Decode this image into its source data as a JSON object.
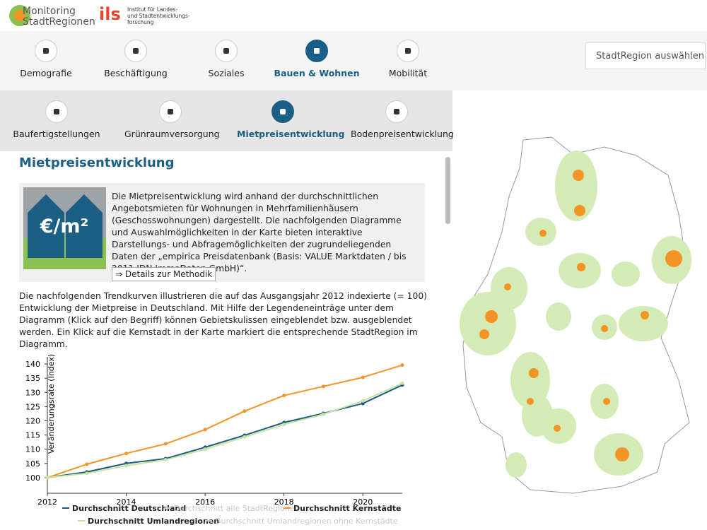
{
  "header": {
    "logo_main": [
      "Monitoring",
      "StadtRegionen"
    ],
    "logo_ils": "ils",
    "ils_lines": [
      "Institut für Landes-",
      "und Stadtentwicklungs-",
      "forschung"
    ]
  },
  "nav": {
    "active": 3,
    "items": [
      "Demografie",
      "Beschäftigung",
      "Soziales",
      "Bauen & Wohnen",
      "Mobilität"
    ]
  },
  "subnav": {
    "active": 2,
    "items": [
      "Baufertigstellungen",
      "Grünraumversorgung",
      "Mietpreisentwicklung",
      "Bodenpreisentwicklung"
    ]
  },
  "search": {
    "placeholder": "StadtRegion auswählen ..."
  },
  "section": {
    "title": "Mietpreisentwicklung",
    "icon_label": "€/m²",
    "intro": "Die Mietpreisentwicklung wird anhand der durchschnittlichen Angebotsmieten für Wohnungen in Mehrfamilienhäusern (Geschosswohnungen) dargestellt. Die nachfolgenden Diagramme und Auswahlmöglichkeiten in der Karte bieten interaktive Darstellungs- und Abfragemöglichkeiten der zugrundeliegenden Daten der „empirica Preisdatenbank (Basis: VALUE Marktdaten / bis 2011 IDN ImmoDaten GmbH)“.",
    "button": "⇒ Details zur Methodik",
    "paragraph": "Die nachfolgenden Trendkurven illustrieren die auf das Ausgangsjahr 2012 indexierte (= 100) Entwicklung der Mietpreise in Deutschland. Mit Hilfe der Legendeneinträge unter dem Diagramm (Klick auf den Begriff) können Gebietskulissen eingeblendet bzw. ausgeblendet werden. Ein Klick auf die Kernstadt in der Karte markiert die entsprechende StadtRegion im Diagramm."
  },
  "chart_data": {
    "type": "line",
    "y_label": "Veränderungsrate (Index)",
    "x": [
      2012,
      2013,
      2014,
      2015,
      2016,
      2017,
      2018,
      2019,
      2020,
      2021
    ],
    "xlim": [
      2012,
      2021
    ],
    "xticks": [
      2012,
      2014,
      2016,
      2018,
      2020
    ],
    "ylim": [
      94.5,
      142.5
    ],
    "yticks": [
      100,
      105,
      110,
      115,
      120,
      125,
      130,
      135,
      140
    ],
    "series": [
      {
        "name": "Durchschnitt Deutschland",
        "color": "#1b5c7e",
        "visible": true,
        "values": [
          100,
          102,
          105,
          106.7,
          110.7,
          114.9,
          119.4,
          122.6,
          126.1,
          132.6
        ]
      },
      {
        "name": "Durchschnitt alle StadtRegionen",
        "color": "#cccccc",
        "visible": false,
        "values": [
          null,
          null,
          null,
          null,
          null,
          null,
          null,
          null,
          null,
          null
        ]
      },
      {
        "name": "Durchschnitt Kernstädte",
        "color": "#f39424",
        "visible": true,
        "values": [
          100,
          104.7,
          108.5,
          111.9,
          116.9,
          123.4,
          128.9,
          132.1,
          135.3,
          139.6
        ]
      },
      {
        "name": "Durchschnitt Umlandregionen",
        "color": "#c6e3a2",
        "visible": true,
        "values": [
          100,
          101.5,
          104.2,
          106.3,
          110,
          114.3,
          118.7,
          122.3,
          127,
          133.2
        ]
      },
      {
        "name": "Durchschnitt Umlandregionen ohne Kernstädte",
        "color": "#cccccc",
        "visible": false,
        "values": [
          null,
          null,
          null,
          null,
          null,
          null,
          null,
          null,
          null,
          null
        ]
      }
    ]
  }
}
